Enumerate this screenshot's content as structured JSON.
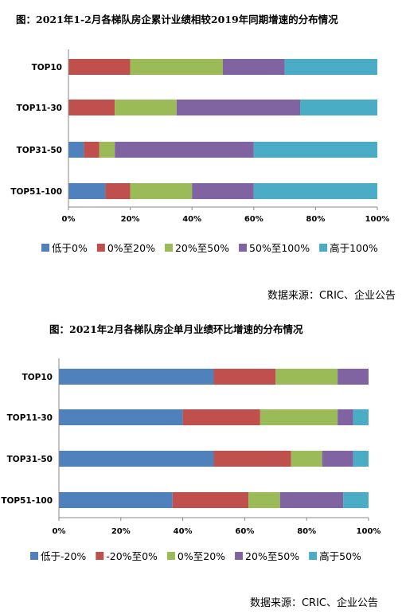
{
  "chart_data": [
    {
      "type": "bar",
      "orientation": "horizontal",
      "stacked": "percent",
      "title": "图：2021年1-2月各梯队房企累计业绩相较2019年同期增速的分布情况",
      "categories": [
        "TOP10",
        "TOP11-30",
        "TOP31-50",
        "TOP51-100"
      ],
      "series": [
        {
          "name": "低于0%",
          "color": "#4f81bd",
          "values": [
            0,
            0,
            5,
            12
          ]
        },
        {
          "name": "0%至20%",
          "color": "#c0504d",
          "values": [
            20,
            15,
            5,
            8
          ]
        },
        {
          "name": "20%至50%",
          "color": "#9bbb59",
          "values": [
            30,
            20,
            5,
            20
          ]
        },
        {
          "name": "50%至100%",
          "color": "#8064a2",
          "values": [
            20,
            40,
            45,
            20
          ]
        },
        {
          "name": "高于100%",
          "color": "#4bacc6",
          "values": [
            30,
            25,
            40,
            40
          ]
        }
      ],
      "xticks": [
        "0%",
        "20%",
        "40%",
        "60%",
        "80%",
        "100%"
      ],
      "xlim": [
        0,
        100
      ],
      "legend": "bottom",
      "grid": false,
      "source": "数据来源：CRIC、企业公告"
    },
    {
      "type": "bar",
      "orientation": "horizontal",
      "stacked": "percent",
      "title": "图：2021年2月各梯队房企单月业绩环比增速的分布情况",
      "categories": [
        "TOP10",
        "TOP11-30",
        "TOP31-50",
        "TOP51-100"
      ],
      "series": [
        {
          "name": "低于-20%",
          "color": "#4f81bd",
          "values": [
            50,
            40,
            50,
            36.7
          ]
        },
        {
          "name": "-20%至0%",
          "color": "#c0504d",
          "values": [
            20,
            25,
            25,
            24.5
          ]
        },
        {
          "name": "0%至20%",
          "color": "#9bbb59",
          "values": [
            20,
            25,
            10,
            10.2
          ]
        },
        {
          "name": "20%至50%",
          "color": "#8064a2",
          "values": [
            10,
            5,
            10,
            20.4
          ]
        },
        {
          "name": "高于50%",
          "color": "#4bacc6",
          "values": [
            0,
            5,
            5,
            8.2
          ]
        }
      ],
      "xticks": [
        "0%",
        "20%",
        "40%",
        "60%",
        "80%",
        "100%"
      ],
      "xlim": [
        0,
        100
      ],
      "legend": "bottom",
      "grid": false,
      "source": "数据来源：CRIC、企业公告"
    }
  ]
}
